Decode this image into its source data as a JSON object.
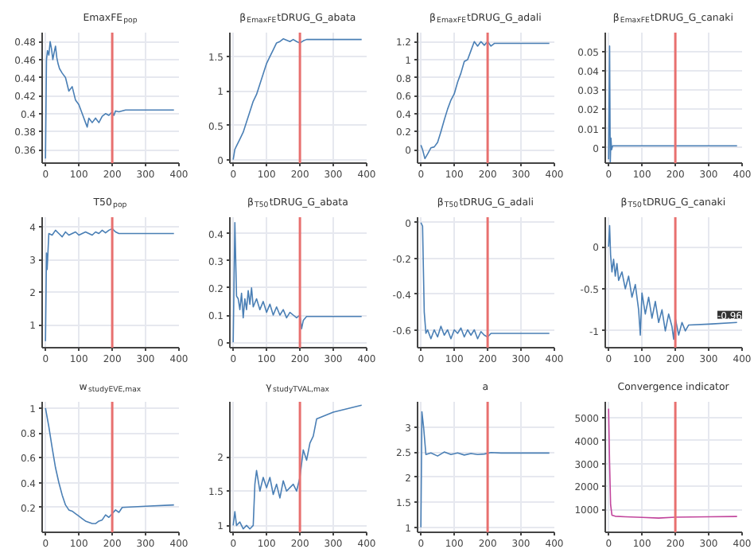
{
  "chart_data": [
    {
      "type": "line",
      "title": "EmaxFE$_{pop}$",
      "xlim": [
        -10,
        400
      ],
      "xticks": [
        0,
        100,
        200,
        300,
        400
      ],
      "ylim": [
        0.345,
        0.49
      ],
      "yticks": [
        0.36,
        0.38,
        0.4,
        0.42,
        0.44,
        0.46,
        0.48
      ],
      "grid": true,
      "ref_lines": [
        {
          "axis": "x",
          "value": 200,
          "color": "#e8706f"
        }
      ],
      "series": [
        {
          "color": "#4a7fb5",
          "x": [
            0,
            3,
            6,
            10,
            14,
            18,
            22,
            26,
            30,
            34,
            38,
            42,
            50,
            60,
            70,
            80,
            90,
            100,
            110,
            120,
            125,
            130,
            140,
            150,
            160,
            170,
            180,
            190,
            200,
            205,
            210,
            220,
            240,
            300,
            385
          ],
          "values": [
            0.35,
            0.46,
            0.47,
            0.465,
            0.48,
            0.472,
            0.46,
            0.468,
            0.475,
            0.462,
            0.455,
            0.45,
            0.445,
            0.44,
            0.425,
            0.43,
            0.415,
            0.41,
            0.4,
            0.39,
            0.385,
            0.395,
            0.39,
            0.395,
            0.39,
            0.397,
            0.4,
            0.398,
            0.402,
            0.398,
            0.403,
            0.402,
            0.404,
            0.404,
            0.404
          ]
        }
      ]
    },
    {
      "type": "line",
      "title": "β$_{EmaxFE}$tDRUG_G_abata",
      "xlim": [
        -10,
        400
      ],
      "xticks": [
        0,
        100,
        200,
        300,
        400
      ],
      "ylim": [
        -0.05,
        1.85
      ],
      "yticks": [
        0,
        0.5,
        1,
        1.5
      ],
      "grid": true,
      "ref_lines": [
        {
          "axis": "x",
          "value": 200,
          "color": "#e8706f"
        }
      ],
      "series": [
        {
          "color": "#4a7fb5",
          "x": [
            0,
            5,
            10,
            20,
            30,
            40,
            50,
            60,
            70,
            80,
            90,
            100,
            110,
            120,
            130,
            140,
            150,
            160,
            170,
            180,
            190,
            200,
            210,
            220,
            240,
            300,
            385
          ],
          "values": [
            0.0,
            0.15,
            0.2,
            0.3,
            0.4,
            0.55,
            0.7,
            0.85,
            0.95,
            1.1,
            1.25,
            1.4,
            1.5,
            1.6,
            1.7,
            1.72,
            1.76,
            1.74,
            1.72,
            1.75,
            1.72,
            1.7,
            1.73,
            1.75,
            1.75,
            1.75,
            1.75
          ]
        }
      ]
    },
    {
      "type": "line",
      "title": "β$_{EmaxFE}$tDRUG_G_adali",
      "xlim": [
        -10,
        400
      ],
      "xticks": [
        0,
        100,
        200,
        300,
        400
      ],
      "ylim": [
        -0.15,
        1.3
      ],
      "yticks": [
        0,
        0.2,
        0.4,
        0.6,
        0.8,
        1,
        1.2
      ],
      "grid": true,
      "ref_lines": [
        {
          "axis": "x",
          "value": 200,
          "color": "#e8706f"
        }
      ],
      "series": [
        {
          "color": "#4a7fb5",
          "x": [
            0,
            5,
            12,
            20,
            30,
            40,
            50,
            60,
            70,
            80,
            90,
            100,
            110,
            120,
            130,
            140,
            150,
            160,
            170,
            180,
            190,
            200,
            210,
            220,
            240,
            300,
            385
          ],
          "values": [
            0.05,
            0.0,
            -0.1,
            -0.05,
            0.02,
            0.03,
            0.08,
            0.2,
            0.33,
            0.45,
            0.55,
            0.62,
            0.75,
            0.85,
            0.98,
            1.0,
            1.1,
            1.2,
            1.15,
            1.2,
            1.16,
            1.2,
            1.15,
            1.18,
            1.18,
            1.18,
            1.18
          ]
        }
      ]
    },
    {
      "type": "line",
      "title": "β$_{EmaxFE}$tDRUG_G_canaki",
      "xlim": [
        -10,
        400
      ],
      "xticks": [
        0,
        100,
        200,
        300,
        400
      ],
      "ylim": [
        -0.008,
        0.06
      ],
      "yticks": [
        0,
        0.01,
        0.02,
        0.03,
        0.04,
        0.05
      ],
      "grid": true,
      "ref_lines": [
        {
          "axis": "x",
          "value": 200,
          "color": "#e8706f"
        }
      ],
      "series": [
        {
          "color": "#4a7fb5",
          "x": [
            0,
            3,
            5,
            7,
            9,
            12,
            20,
            40,
            100,
            200,
            300,
            385
          ],
          "values": [
            -0.006,
            0.053,
            -0.008,
            0.005,
            -0.001,
            0.001,
            0.001,
            0.001,
            0.001,
            0.001,
            0.001,
            0.001
          ]
        }
      ]
    },
    {
      "type": "line",
      "title": "T50$_{pop}$",
      "xlim": [
        -10,
        400
      ],
      "xticks": [
        0,
        100,
        200,
        300,
        400
      ],
      "ylim": [
        0.3,
        4.3
      ],
      "yticks": [
        1,
        2,
        3,
        4
      ],
      "grid": true,
      "ref_lines": [
        {
          "axis": "x",
          "value": 200,
          "color": "#e8706f"
        }
      ],
      "series": [
        {
          "color": "#4a7fb5",
          "x": [
            0,
            3,
            5,
            10,
            20,
            30,
            40,
            50,
            60,
            70,
            80,
            90,
            100,
            110,
            120,
            130,
            140,
            150,
            160,
            170,
            180,
            190,
            200,
            210,
            220,
            240,
            300,
            385
          ],
          "values": [
            0.5,
            3.2,
            2.7,
            3.8,
            3.75,
            3.9,
            3.8,
            3.7,
            3.85,
            3.75,
            3.8,
            3.85,
            3.75,
            3.8,
            3.85,
            3.8,
            3.75,
            3.85,
            3.8,
            3.9,
            3.82,
            3.9,
            3.95,
            3.85,
            3.8,
            3.8,
            3.8,
            3.8
          ]
        }
      ]
    },
    {
      "type": "line",
      "title": "β$_{T50}$tDRUG_G_abata",
      "xlim": [
        -10,
        400
      ],
      "xticks": [
        0,
        100,
        200,
        300,
        400
      ],
      "ylim": [
        -0.02,
        0.46
      ],
      "yticks": [
        0,
        0.1,
        0.2,
        0.3,
        0.4
      ],
      "grid": true,
      "ref_lines": [
        {
          "axis": "x",
          "value": 200,
          "color": "#e8706f"
        }
      ],
      "series": [
        {
          "color": "#4a7fb5",
          "x": [
            0,
            5,
            10,
            15,
            20,
            25,
            30,
            35,
            40,
            45,
            50,
            55,
            60,
            70,
            80,
            90,
            100,
            110,
            120,
            130,
            140,
            150,
            160,
            170,
            180,
            190,
            200,
            205,
            210,
            220,
            240,
            300,
            385
          ],
          "values": [
            0.0,
            0.44,
            0.17,
            0.16,
            0.12,
            0.18,
            0.09,
            0.16,
            0.12,
            0.19,
            0.14,
            0.2,
            0.13,
            0.16,
            0.12,
            0.15,
            0.11,
            0.14,
            0.1,
            0.13,
            0.1,
            0.12,
            0.09,
            0.11,
            0.1,
            0.09,
            0.1,
            0.05,
            0.08,
            0.095,
            0.095,
            0.095,
            0.095
          ]
        }
      ]
    },
    {
      "type": "line",
      "title": "β$_{T50}$tDRUG_G_adali",
      "xlim": [
        -10,
        400
      ],
      "xticks": [
        0,
        100,
        200,
        300,
        400
      ],
      "ylim": [
        -0.7,
        0.03
      ],
      "yticks": [
        0,
        -0.2,
        -0.4,
        -0.6
      ],
      "grid": true,
      "ref_lines": [
        {
          "axis": "x",
          "value": 200,
          "color": "#e8706f"
        }
      ],
      "series": [
        {
          "color": "#4a7fb5",
          "x": [
            0,
            5,
            10,
            15,
            20,
            30,
            40,
            50,
            60,
            70,
            80,
            90,
            100,
            110,
            120,
            130,
            140,
            150,
            160,
            170,
            180,
            190,
            200,
            210,
            220,
            240,
            300,
            385
          ],
          "values": [
            0.0,
            -0.02,
            -0.5,
            -0.62,
            -0.6,
            -0.65,
            -0.6,
            -0.64,
            -0.58,
            -0.63,
            -0.6,
            -0.65,
            -0.6,
            -0.62,
            -0.59,
            -0.64,
            -0.6,
            -0.63,
            -0.6,
            -0.65,
            -0.61,
            -0.63,
            -0.64,
            -0.62,
            -0.62,
            -0.62,
            -0.62,
            -0.62
          ]
        }
      ]
    },
    {
      "type": "line",
      "title": "β$_{T50}$tDRUG_G_canaki",
      "xlim": [
        -10,
        400
      ],
      "xticks": [
        0,
        100,
        200,
        300,
        400
      ],
      "ylim": [
        -1.2,
        0.35
      ],
      "yticks": [
        0,
        -0.5,
        -1
      ],
      "grid": true,
      "ref_lines": [
        {
          "axis": "x",
          "value": 200,
          "color": "#e8706f"
        }
      ],
      "annotations": [
        {
          "text": "-0.96",
          "x": 400,
          "y": -0.96
        }
      ],
      "series": [
        {
          "color": "#4a7fb5",
          "x": [
            0,
            3,
            6,
            10,
            15,
            20,
            25,
            30,
            40,
            50,
            60,
            70,
            80,
            90,
            95,
            100,
            110,
            120,
            130,
            140,
            150,
            160,
            170,
            180,
            190,
            195,
            200,
            205,
            210,
            220,
            230,
            240,
            300,
            385
          ],
          "values": [
            0.0,
            0.25,
            -0.1,
            -0.3,
            -0.15,
            -0.35,
            -0.2,
            -0.4,
            -0.3,
            -0.5,
            -0.35,
            -0.6,
            -0.45,
            -0.75,
            -1.05,
            -0.55,
            -0.8,
            -0.6,
            -0.85,
            -0.65,
            -0.9,
            -0.75,
            -1.0,
            -0.8,
            -0.95,
            -1.1,
            -0.85,
            -0.95,
            -1.05,
            -0.9,
            -1.0,
            -0.93,
            -0.92,
            -0.9
          ]
        }
      ]
    },
    {
      "type": "line",
      "title": "w$_{studyEVE,max}$",
      "xlim": [
        -10,
        400
      ],
      "xticks": [
        0,
        100,
        200,
        300,
        400
      ],
      "ylim": [
        0,
        1.05
      ],
      "yticks": [
        0.2,
        0.4,
        0.6,
        0.8,
        1
      ],
      "grid": true,
      "ref_lines": [
        {
          "axis": "x",
          "value": 200,
          "color": "#e8706f"
        }
      ],
      "series": [
        {
          "color": "#4a7fb5",
          "x": [
            0,
            10,
            20,
            30,
            40,
            50,
            60,
            70,
            80,
            90,
            100,
            110,
            120,
            130,
            140,
            150,
            160,
            170,
            180,
            190,
            200,
            210,
            220,
            230,
            300,
            385
          ],
          "values": [
            1.0,
            0.85,
            0.68,
            0.52,
            0.4,
            0.3,
            0.22,
            0.18,
            0.17,
            0.15,
            0.13,
            0.11,
            0.09,
            0.08,
            0.07,
            0.07,
            0.09,
            0.1,
            0.14,
            0.12,
            0.15,
            0.18,
            0.16,
            0.2,
            0.21,
            0.22
          ]
        }
      ]
    },
    {
      "type": "line",
      "title": "γ$_{studyTVAL,max}$",
      "xlim": [
        -10,
        400
      ],
      "xticks": [
        0,
        100,
        200,
        300,
        400
      ],
      "ylim": [
        0.9,
        2.8
      ],
      "yticks": [
        1,
        1.5,
        2
      ],
      "grid": true,
      "ref_lines": [
        {
          "axis": "x",
          "value": 200,
          "color": "#e8706f"
        }
      ],
      "series": [
        {
          "color": "#4a7fb5",
          "x": [
            0,
            5,
            10,
            20,
            30,
            40,
            50,
            60,
            65,
            70,
            80,
            90,
            100,
            110,
            120,
            130,
            140,
            150,
            160,
            170,
            180,
            190,
            200,
            205,
            210,
            220,
            230,
            240,
            250,
            300,
            385
          ],
          "values": [
            1.0,
            1.2,
            1.0,
            1.05,
            0.95,
            1.0,
            0.95,
            1.0,
            1.6,
            1.8,
            1.5,
            1.7,
            1.55,
            1.7,
            1.45,
            1.6,
            1.4,
            1.65,
            1.5,
            1.55,
            1.6,
            1.5,
            1.7,
            1.9,
            2.1,
            1.95,
            2.2,
            2.3,
            2.55,
            2.65,
            2.75
          ]
        }
      ]
    },
    {
      "type": "line",
      "title": "a",
      "xlim": [
        -10,
        400
      ],
      "xticks": [
        0,
        100,
        200,
        300,
        400
      ],
      "ylim": [
        0.9,
        3.5
      ],
      "yticks": [
        1,
        1.5,
        2,
        2.5,
        3
      ],
      "grid": true,
      "ref_lines": [
        {
          "axis": "x",
          "value": 200,
          "color": "#e8706f"
        }
      ],
      "series": [
        {
          "color": "#4a7fb5",
          "x": [
            0,
            3,
            8,
            15,
            30,
            50,
            70,
            90,
            110,
            130,
            150,
            170,
            190,
            210,
            240,
            300,
            385
          ],
          "values": [
            1.0,
            3.3,
            3.0,
            2.45,
            2.48,
            2.42,
            2.5,
            2.45,
            2.48,
            2.44,
            2.47,
            2.45,
            2.46,
            2.49,
            2.48,
            2.48,
            2.48
          ]
        }
      ]
    },
    {
      "type": "line",
      "title": "Convergence indicator",
      "xlim": [
        -10,
        400
      ],
      "xticks": [
        0,
        100,
        200,
        300,
        400
      ],
      "ylim": [
        0,
        5700
      ],
      "yticks": [
        1000,
        2000,
        3000,
        4000,
        5000
      ],
      "grid": true,
      "ref_lines": [
        {
          "axis": "x",
          "value": 200,
          "color": "#e8706f"
        }
      ],
      "series": [
        {
          "color": "#c2459c",
          "x": [
            0,
            3,
            6,
            10,
            20,
            50,
            100,
            150,
            200,
            250,
            300,
            385
          ],
          "values": [
            5400,
            3000,
            1200,
            750,
            700,
            680,
            650,
            620,
            660,
            670,
            680,
            690
          ]
        }
      ]
    }
  ]
}
